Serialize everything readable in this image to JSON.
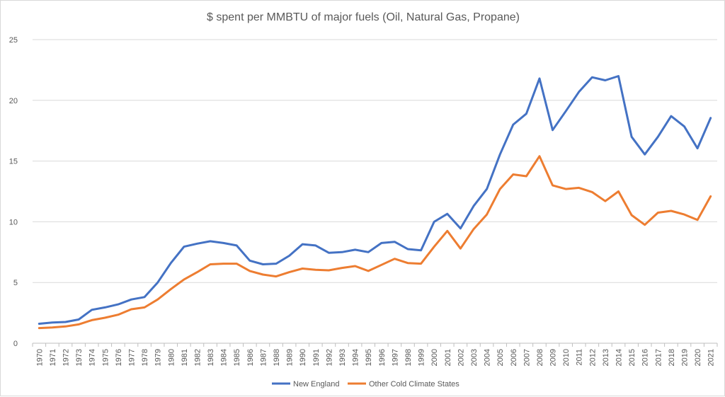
{
  "chart_data": {
    "type": "line",
    "title": "$ spent per MMBTU of major fuels (Oil, Natural Gas, Propane)",
    "xlabel": "",
    "ylabel": "",
    "ylim": [
      0,
      25
    ],
    "y_ticks": [
      "0",
      "5",
      "10",
      "15",
      "20",
      "25"
    ],
    "grid": true,
    "legend_position": "bottom",
    "categories": [
      "1970",
      "1971",
      "1972",
      "1973",
      "1974",
      "1975",
      "1976",
      "1977",
      "1978",
      "1979",
      "1980",
      "1981",
      "1982",
      "1983",
      "1984",
      "1985",
      "1986",
      "1987",
      "1988",
      "1989",
      "1990",
      "1991",
      "1992",
      "1993",
      "1994",
      "1995",
      "1996",
      "1997",
      "1998",
      "1999",
      "2000",
      "2001",
      "2002",
      "2003",
      "2004",
      "2005",
      "2006",
      "2007",
      "2008",
      "2009",
      "2010",
      "2011",
      "2012",
      "2013",
      "2014",
      "2015",
      "2016",
      "2017",
      "2018",
      "2019",
      "2020",
      "2021"
    ],
    "series": [
      {
        "name": "New England",
        "color": "#4472c4",
        "values": [
          1.6,
          1.7,
          1.75,
          1.95,
          2.75,
          2.95,
          3.2,
          3.6,
          3.8,
          5.0,
          6.6,
          7.95,
          8.2,
          8.4,
          8.25,
          8.05,
          6.8,
          6.5,
          6.55,
          7.2,
          8.15,
          8.05,
          7.45,
          7.5,
          7.7,
          7.5,
          8.25,
          8.35,
          7.75,
          7.65,
          10.0,
          10.65,
          9.45,
          11.3,
          12.7,
          15.55,
          18.0,
          18.9,
          21.8,
          17.55,
          19.1,
          20.7,
          21.9,
          21.65,
          22.0,
          17.0,
          15.55,
          17.0,
          18.7,
          17.85,
          16.05,
          18.55
        ]
      },
      {
        "name": "Other Cold Climate States",
        "color": "#ed7d31",
        "values": [
          1.25,
          1.3,
          1.38,
          1.55,
          1.9,
          2.1,
          2.35,
          2.8,
          2.95,
          3.6,
          4.45,
          5.25,
          5.85,
          6.5,
          6.55,
          6.55,
          5.95,
          5.65,
          5.5,
          5.85,
          6.15,
          6.05,
          6.0,
          6.2,
          6.35,
          5.95,
          6.45,
          6.95,
          6.6,
          6.55,
          7.95,
          9.25,
          7.8,
          9.4,
          10.6,
          12.7,
          13.9,
          13.75,
          15.4,
          13.0,
          12.7,
          12.8,
          12.45,
          11.7,
          12.5,
          10.55,
          9.75,
          10.75,
          10.9,
          10.6,
          10.15,
          12.1
        ]
      }
    ]
  }
}
